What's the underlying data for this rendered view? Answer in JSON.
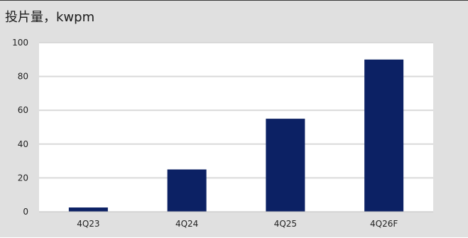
{
  "chart_data": {
    "type": "bar",
    "title": "投片量，kwpm",
    "categories": [
      "4Q23",
      "4Q24",
      "4Q25",
      "4Q26F"
    ],
    "values": [
      2.5,
      25,
      55,
      90
    ],
    "ylim": [
      0,
      100
    ],
    "yticks": [
      "0",
      "20",
      "40",
      "60",
      "80",
      "100"
    ],
    "xlabel": "",
    "ylabel": "",
    "grid": true,
    "legend": "none",
    "colors": {
      "bar": "#0c2164",
      "plot_background": "#ffffff",
      "panel_background": "#e0e0e0",
      "gridline": "#d9d9d9"
    }
  }
}
